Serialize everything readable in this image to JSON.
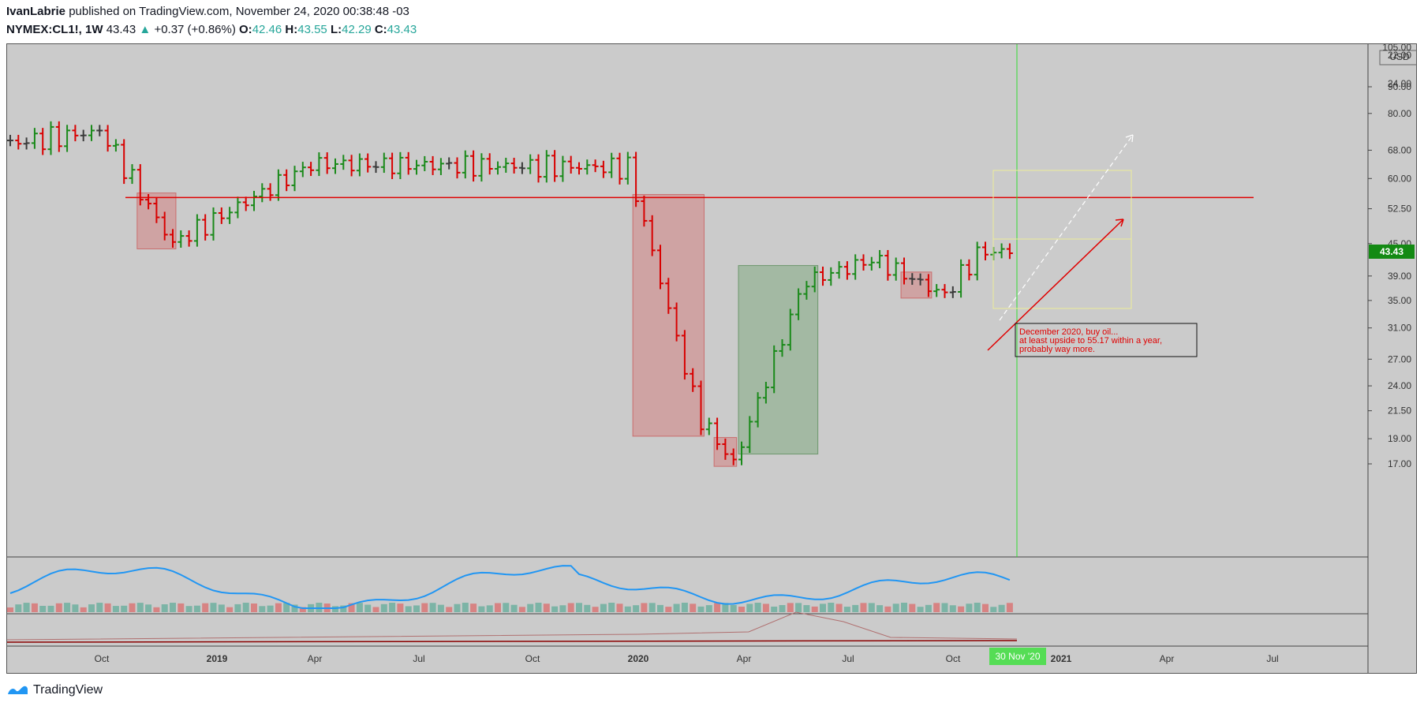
{
  "header": {
    "author": "IvanLabrie",
    "published": "published on TradingView.com, November 24, 2020 00:38:48 -03",
    "symbol": "NYMEX:CL1!, 1W",
    "last": "43.43",
    "change": "+0.37 (+0.86%)",
    "o_label": "O:",
    "o": "42.46",
    "h_label": "H:",
    "h": "43.55",
    "l_label": "L:",
    "l": "42.29",
    "c_label": "C:",
    "c": "43.43"
  },
  "footer": {
    "brand": "TradingView"
  },
  "colors": {
    "up": "#1a8a1a",
    "down": "#d80000",
    "neutral": "#3a3a3a",
    "line": "#2196f3",
    "bg": "#cbcbcb"
  },
  "chart_data": {
    "type": "ohlc",
    "scale": "log",
    "currency": "USD",
    "price_axis_ticks": [
      "90.00",
      "80.00",
      "68.00",
      "60.00",
      "52.50",
      "45.00",
      "39.00",
      "35.00",
      "31.00",
      "27.00",
      "24.00",
      "21.50",
      "19.00",
      "17.00"
    ],
    "price_axis_top_partial": "105.00",
    "price_label": "43.43",
    "time_axis_ticks": [
      {
        "label": "Oct",
        "bold": false
      },
      {
        "label": "2019",
        "bold": true
      },
      {
        "label": "Apr",
        "bold": false
      },
      {
        "label": "Jul",
        "bold": false
      },
      {
        "label": "Oct",
        "bold": false
      },
      {
        "label": "2020",
        "bold": true
      },
      {
        "label": "Apr",
        "bold": false
      },
      {
        "label": "Jul",
        "bold": false
      },
      {
        "label": "Oct",
        "bold": false
      },
      {
        "label": "2021",
        "bold": true
      },
      {
        "label": "Apr",
        "bold": false
      },
      {
        "label": "Jul",
        "bold": false
      }
    ],
    "cursor_date": "30 Nov '20",
    "horizontal_level": 55.17,
    "key_points": [
      {
        "date": "2018-10",
        "close": 74
      },
      {
        "date": "2018-12",
        "close": 45
      },
      {
        "date": "2019-04",
        "close": 64
      },
      {
        "date": "2020-01",
        "close": 63
      },
      {
        "date": "2020-03",
        "close": 21
      },
      {
        "date": "2020-04",
        "close": 17
      },
      {
        "date": "2020-06",
        "close": 38
      },
      {
        "date": "2020-08",
        "close": 42
      },
      {
        "date": "2020-10",
        "close": 35.8
      },
      {
        "date": "2020-11",
        "close": 43.43
      }
    ],
    "annotation": {
      "lines": [
        "December 2020, buy oil...",
        "at least upside to 55.17 within a year,",
        "probably way more."
      ]
    },
    "oscillator_ticks": [
      "22.00",
      "24.00"
    ]
  }
}
